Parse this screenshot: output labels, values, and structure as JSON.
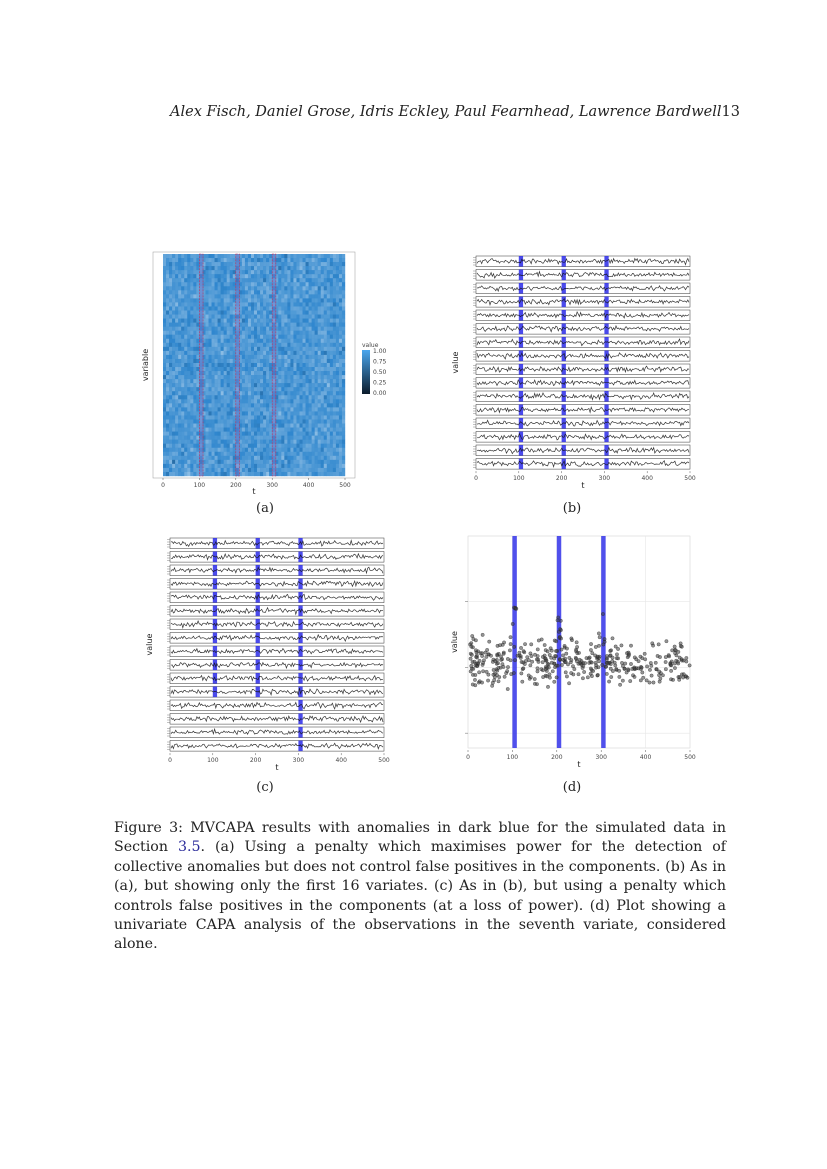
{
  "header": {
    "authors": "Alex Fisch, Daniel Grose, Idris Eckley, Paul Fearnhead, Lawrence Bardwell",
    "page_number": "13"
  },
  "panels": {
    "a": {
      "label": "(a)"
    },
    "b": {
      "label": "(b)"
    },
    "c": {
      "label": "(c)"
    },
    "d": {
      "label": "(d)"
    }
  },
  "caption": {
    "text_before": "Figure 3: MVCAPA results with anomalies in dark blue for the simulated data in Section ",
    "section_ref": "3.5",
    "text_after": ". (a) Using a penalty which maximises power for the detection of collective anomalies but does not control false positives in the components. (b) As in (a), but showing only the first 16 variates. (c) As in (b), but using a penalty which controls false positives in the components (at a loss of power). (d) Plot showing a univariate CAPA analysis of the observations in the seventh variate, considered alone."
  },
  "colors": {
    "heat_low": "#0b1b2b",
    "heat_high": "#4aa6ee",
    "anomaly": "#2a2ae8",
    "anomaly_outline": "#c0305a"
  },
  "chart_data": [
    {
      "id": "a",
      "type": "heatmap",
      "xlabel": "t",
      "ylabel": "variable",
      "x_ticks": [
        "0",
        "100",
        "200",
        "300",
        "400",
        "500"
      ],
      "xlim": [
        0,
        500
      ],
      "legend": {
        "title": "value",
        "ticks": [
          "1.00",
          "0.75",
          "0.50",
          "0.25",
          "0.00"
        ],
        "placement": "right"
      },
      "anomaly_windows": [
        [
          100,
          110
        ],
        [
          200,
          210
        ],
        [
          300,
          310
        ]
      ]
    },
    {
      "id": "b",
      "type": "line",
      "facets": 16,
      "xlabel": "t",
      "ylabel": "value",
      "x_ticks": [
        "0",
        "100",
        "200",
        "300",
        "400",
        "500"
      ],
      "xlim": [
        0,
        500
      ],
      "anomaly_windows": [
        [
          100,
          110
        ],
        [
          200,
          210
        ],
        [
          300,
          310
        ]
      ]
    },
    {
      "id": "c",
      "type": "line",
      "facets": 16,
      "xlabel": "t",
      "ylabel": "value",
      "x_ticks": [
        "0",
        "100",
        "200",
        "300",
        "400",
        "500"
      ],
      "xlim": [
        0,
        500
      ],
      "anomaly_windows": [
        [
          100,
          110
        ],
        [
          200,
          210
        ],
        [
          300,
          310
        ]
      ],
      "anomaly_rows": [
        [
          0,
          1,
          2,
          3,
          4,
          5,
          6,
          7,
          8,
          9,
          10,
          11
        ],
        [
          0,
          1,
          2,
          3,
          4,
          5,
          6,
          7,
          8,
          9,
          10,
          11
        ],
        [
          0,
          1,
          2,
          3,
          4,
          5,
          6,
          7,
          8,
          9,
          10,
          11,
          12,
          13,
          14,
          15
        ]
      ]
    },
    {
      "id": "d",
      "type": "scatter",
      "xlabel": "t",
      "ylabel": "value",
      "x_ticks": [
        "0",
        "100",
        "200",
        "300",
        "400",
        "500"
      ],
      "xlim": [
        0,
        500
      ],
      "grid": true,
      "anomaly_windows": [
        [
          100,
          110
        ],
        [
          200,
          210
        ],
        [
          300,
          310
        ]
      ]
    }
  ]
}
